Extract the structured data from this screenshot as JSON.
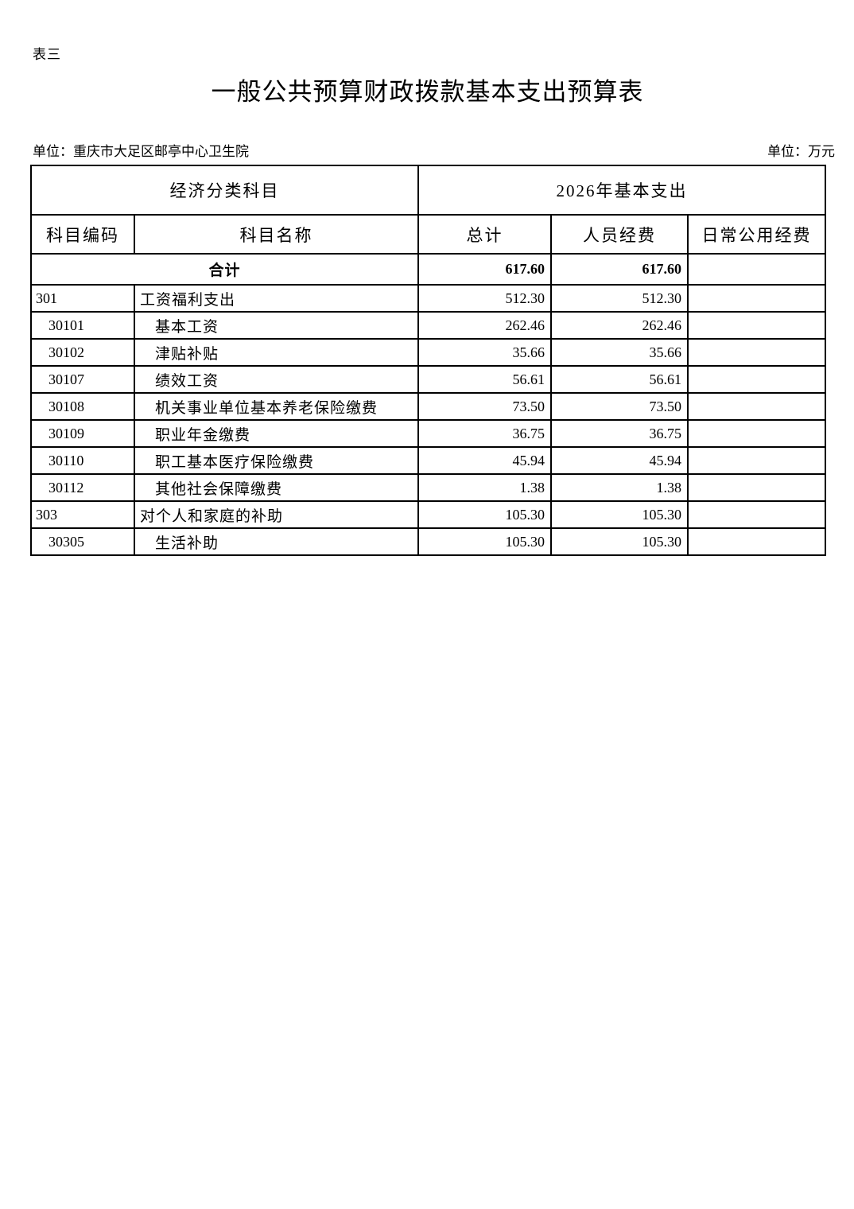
{
  "page": {
    "table_label": "表三",
    "title": "一般公共预算财政拨款基本支出预算表",
    "unit_left": "单位：重庆市大足区邮亭中心卫生院",
    "unit_right": "单位：万元"
  },
  "table": {
    "header_group": {
      "left": "经济分类科目",
      "right": "2026年基本支出"
    },
    "columns": [
      "科目编码",
      "科目名称",
      "总计",
      "人员经费",
      "日常公用经费"
    ],
    "total_row": {
      "label": "合计",
      "total": "617.60",
      "personnel": "617.60",
      "daily": ""
    },
    "rows": [
      {
        "code": "301",
        "name": "工资福利支出",
        "total": "512.30",
        "personnel": "512.30",
        "daily": "",
        "level": 1
      },
      {
        "code": "30101",
        "name": "基本工资",
        "total": "262.46",
        "personnel": "262.46",
        "daily": "",
        "level": 2
      },
      {
        "code": "30102",
        "name": "津贴补贴",
        "total": "35.66",
        "personnel": "35.66",
        "daily": "",
        "level": 2
      },
      {
        "code": "30107",
        "name": "绩效工资",
        "total": "56.61",
        "personnel": "56.61",
        "daily": "",
        "level": 2
      },
      {
        "code": "30108",
        "name": "机关事业单位基本养老保险缴费",
        "total": "73.50",
        "personnel": "73.50",
        "daily": "",
        "level": 2
      },
      {
        "code": "30109",
        "name": "职业年金缴费",
        "total": "36.75",
        "personnel": "36.75",
        "daily": "",
        "level": 2
      },
      {
        "code": "30110",
        "name": "职工基本医疗保险缴费",
        "total": "45.94",
        "personnel": "45.94",
        "daily": "",
        "level": 2
      },
      {
        "code": "30112",
        "name": "其他社会保障缴费",
        "total": "1.38",
        "personnel": "1.38",
        "daily": "",
        "level": 2
      },
      {
        "code": "303",
        "name": "对个人和家庭的补助",
        "total": "105.30",
        "personnel": "105.30",
        "daily": "",
        "level": 1
      },
      {
        "code": "30305",
        "name": "生活补助",
        "total": "105.30",
        "personnel": "105.30",
        "daily": "",
        "level": 2
      }
    ]
  }
}
